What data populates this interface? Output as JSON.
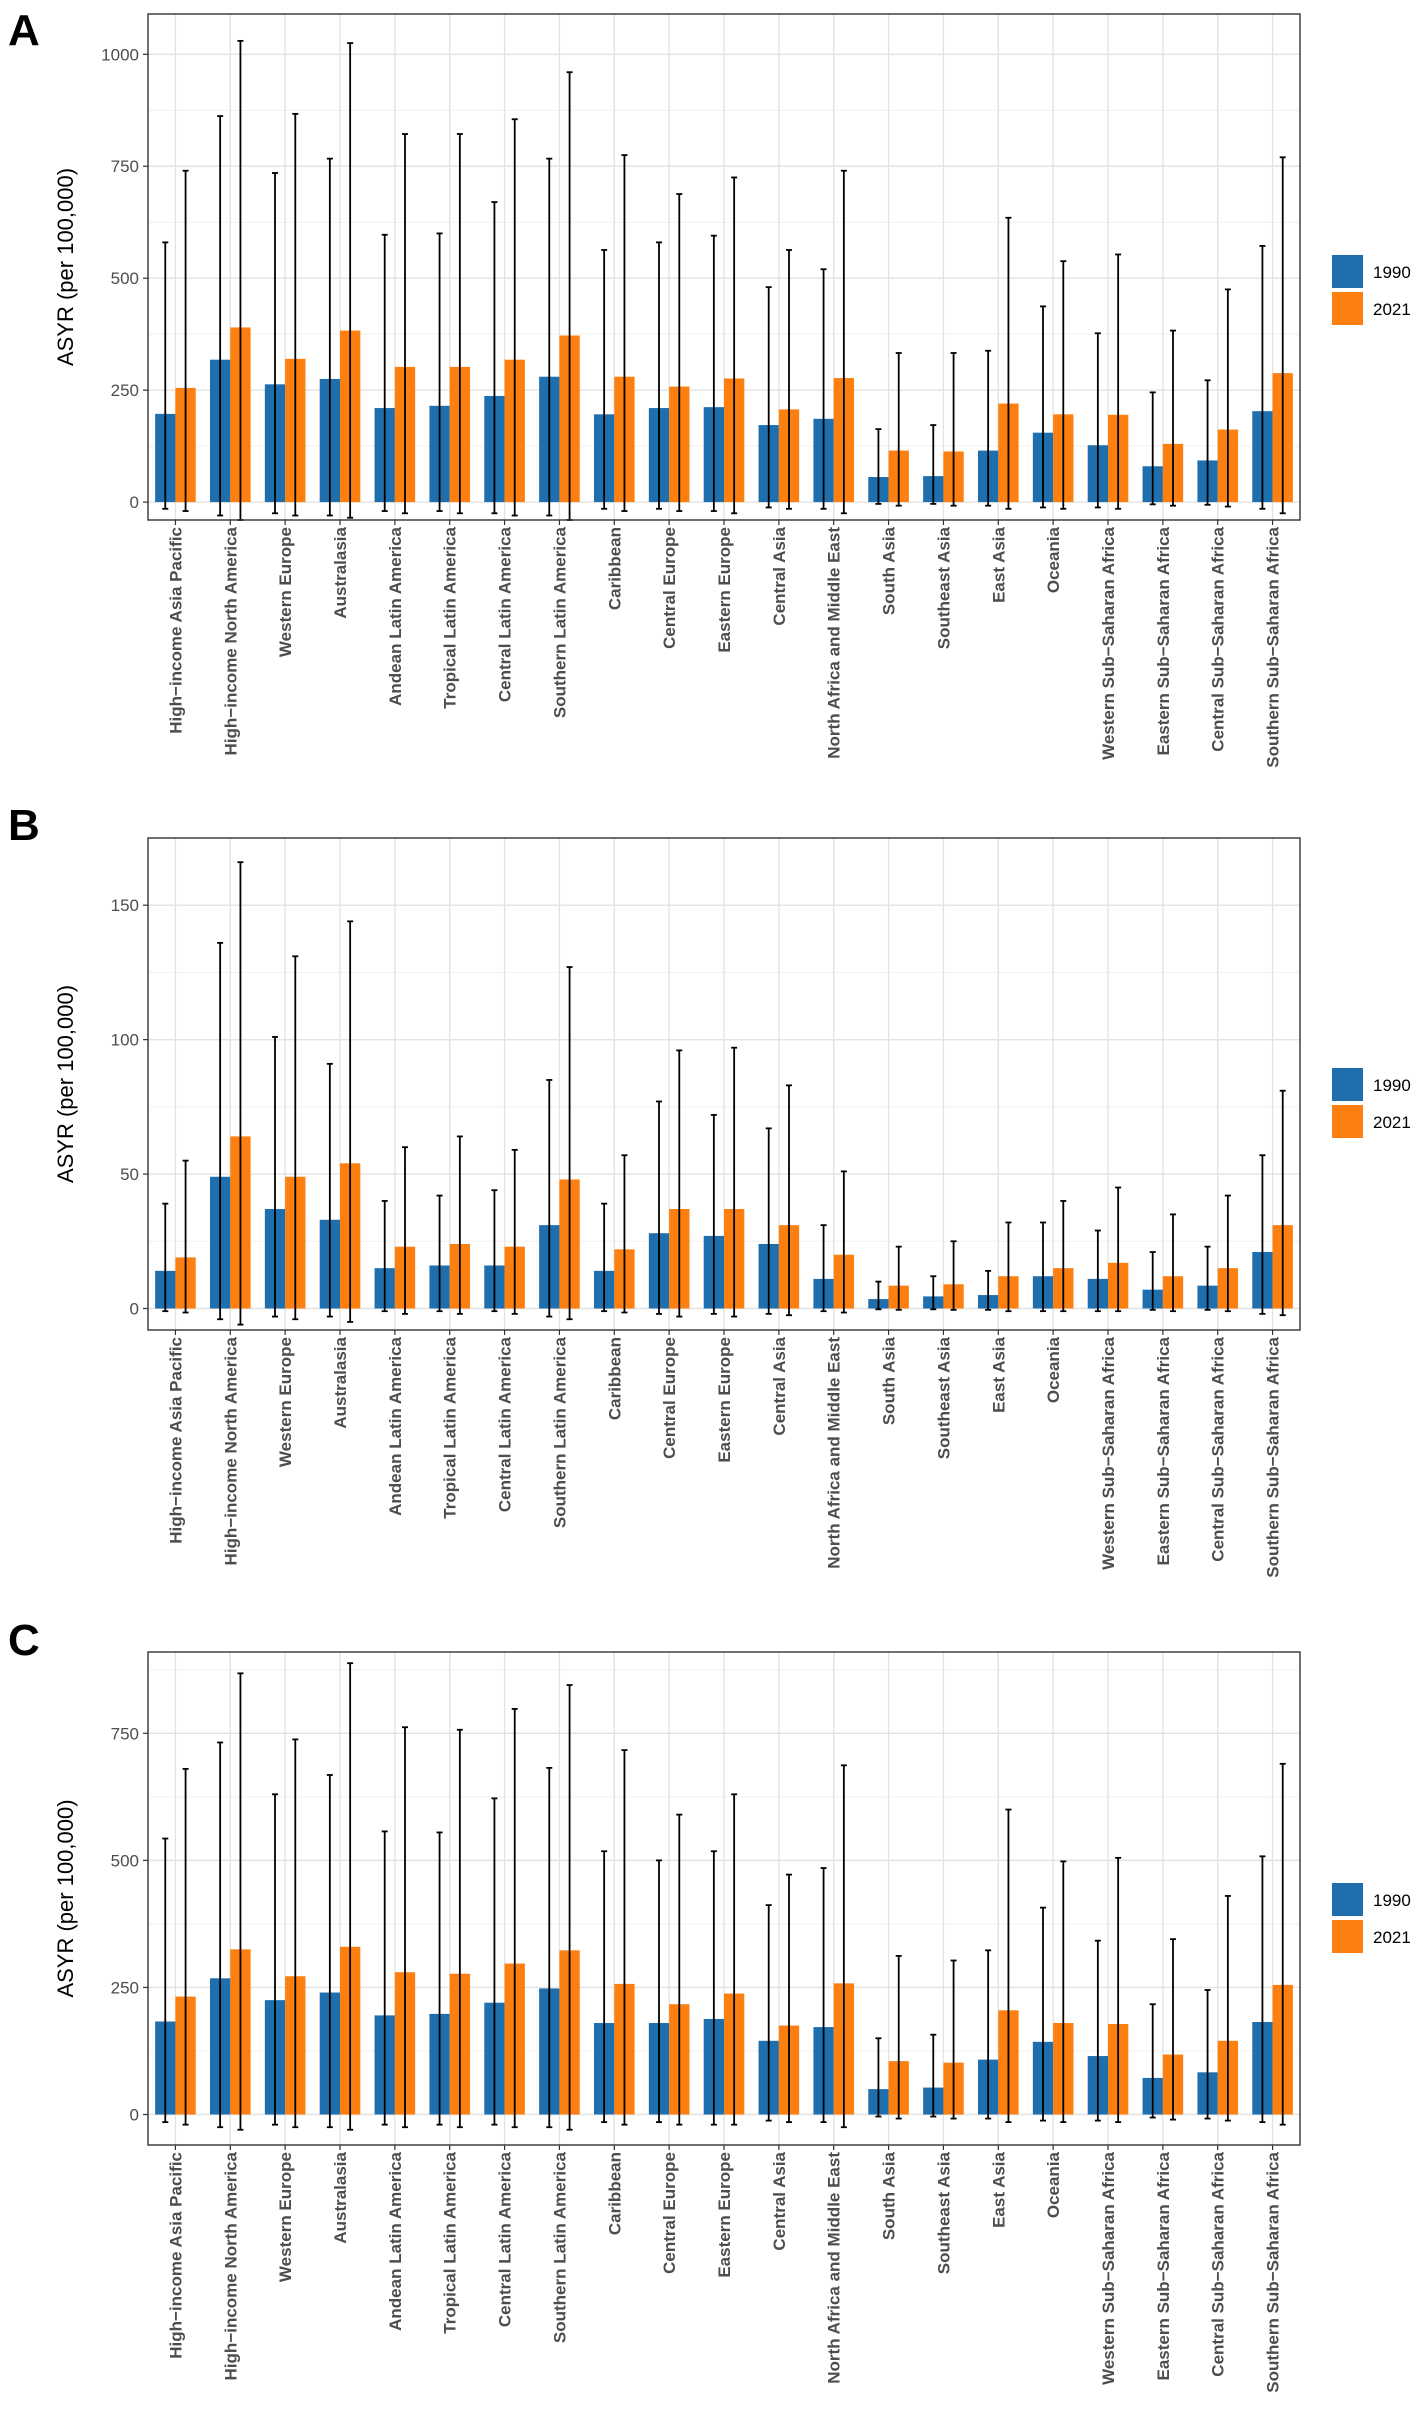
{
  "colors": {
    "series_1990": "#1f6ead",
    "series_2021": "#fc7f0f"
  },
  "chart_data": [
    {
      "panel": "A",
      "type": "bar",
      "ylabel": "ASYR (per 100,000)",
      "ylim": [
        -40,
        1090
      ],
      "yticks": [
        0,
        250,
        500,
        750,
        1000
      ],
      "grid": true,
      "legend_position": "right",
      "categories": [
        "High−income Asia Pacific",
        "High−income North America",
        "Western Europe",
        "Australasia",
        "Andean Latin America",
        "Tropical Latin America",
        "Central Latin America",
        "Southern Latin America",
        "Caribbean",
        "Central Europe",
        "Eastern Europe",
        "Central Asia",
        "North Africa and Middle East",
        "South Asia",
        "Southeast Asia",
        "East Asia",
        "Oceania",
        "Western Sub−Saharan Africa",
        "Eastern Sub−Saharan Africa",
        "Central Sub−Saharan Africa",
        "Southern Sub−Saharan Africa"
      ],
      "series": [
        {
          "name": "1990",
          "values": [
            197,
            318,
            263,
            275,
            210,
            215,
            237,
            280,
            196,
            210,
            212,
            172,
            186,
            56,
            58,
            115,
            155,
            127,
            80,
            93,
            203
          ],
          "lower": [
            -15,
            -30,
            -25,
            -30,
            -20,
            -20,
            -25,
            -30,
            -15,
            -15,
            -20,
            -12,
            -15,
            -4,
            -4,
            -8,
            -12,
            -12,
            -5,
            -6,
            -15
          ],
          "upper": [
            580,
            862,
            735,
            767,
            597,
            600,
            670,
            767,
            563,
            580,
            595,
            480,
            520,
            163,
            172,
            338,
            437,
            377,
            245,
            272,
            572
          ]
        },
        {
          "name": "2021",
          "values": [
            255,
            390,
            320,
            383,
            302,
            302,
            318,
            372,
            280,
            258,
            276,
            207,
            277,
            115,
            113,
            220,
            196,
            195,
            130,
            162,
            288
          ],
          "lower": [
            -20,
            -40,
            -30,
            -35,
            -25,
            -25,
            -30,
            -40,
            -20,
            -20,
            -25,
            -15,
            -25,
            -8,
            -8,
            -15,
            -15,
            -15,
            -8,
            -10,
            -25
          ],
          "upper": [
            740,
            1030,
            867,
            1025,
            822,
            822,
            855,
            960,
            775,
            688,
            725,
            563,
            740,
            333,
            333,
            635,
            538,
            553,
            383,
            475,
            770
          ]
        }
      ]
    },
    {
      "panel": "B",
      "type": "bar",
      "ylabel": "ASYR (per 100,000)",
      "ylim": [
        -8,
        175
      ],
      "yticks": [
        0,
        50,
        100,
        150
      ],
      "grid": true,
      "legend_position": "right",
      "categories": [
        "High−income Asia Pacific",
        "High−income North America",
        "Western Europe",
        "Australasia",
        "Andean Latin America",
        "Tropical Latin America",
        "Central Latin America",
        "Southern Latin America",
        "Caribbean",
        "Central Europe",
        "Eastern Europe",
        "Central Asia",
        "North Africa and Middle East",
        "South Asia",
        "Southeast Asia",
        "East Asia",
        "Oceania",
        "Western Sub−Saharan Africa",
        "Eastern Sub−Saharan Africa",
        "Central Sub−Saharan Africa",
        "Southern Sub−Saharan Africa"
      ],
      "series": [
        {
          "name": "1990",
          "values": [
            14,
            49,
            37,
            33,
            15,
            16,
            16,
            31,
            14,
            28,
            27,
            24,
            11,
            3.5,
            4.5,
            5,
            12,
            11,
            7,
            8.5,
            21
          ],
          "lower": [
            -1,
            -4,
            -3,
            -3,
            -1,
            -1,
            -1,
            -3,
            -1,
            -2,
            -2,
            -2,
            -1,
            -0.3,
            -0.3,
            -0.5,
            -1,
            -1,
            -0.5,
            -0.5,
            -2
          ],
          "upper": [
            39,
            136,
            101,
            91,
            40,
            42,
            44,
            85,
            39,
            77,
            72,
            67,
            31,
            10,
            12,
            14,
            32,
            29,
            21,
            23,
            57
          ]
        },
        {
          "name": "2021",
          "values": [
            19,
            64,
            49,
            54,
            23,
            24,
            23,
            48,
            22,
            37,
            37,
            31,
            20,
            8.5,
            9,
            12,
            15,
            17,
            12,
            15,
            31
          ],
          "lower": [
            -1.5,
            -6,
            -4,
            -5,
            -2,
            -2,
            -2,
            -4,
            -1.5,
            -3,
            -3,
            -2.5,
            -1.5,
            -0.5,
            -0.5,
            -1,
            -1,
            -1,
            -1,
            -1,
            -2.5
          ],
          "upper": [
            55,
            166,
            131,
            144,
            60,
            64,
            59,
            127,
            57,
            96,
            97,
            83,
            51,
            23,
            25,
            32,
            40,
            45,
            35,
            42,
            81
          ]
        }
      ]
    },
    {
      "panel": "C",
      "type": "bar",
      "ylabel": "ASYR (per 100,000)",
      "ylim": [
        -60,
        910
      ],
      "yticks": [
        0,
        250,
        500,
        750
      ],
      "grid": true,
      "legend_position": "right",
      "categories": [
        "High−income Asia Pacific",
        "High−income North America",
        "Western Europe",
        "Australasia",
        "Andean Latin America",
        "Tropical Latin America",
        "Central Latin America",
        "Southern Latin America",
        "Caribbean",
        "Central Europe",
        "Eastern Europe",
        "Central Asia",
        "North Africa and Middle East",
        "South Asia",
        "Southeast Asia",
        "East Asia",
        "Oceania",
        "Western Sub−Saharan Africa",
        "Eastern Sub−Saharan Africa",
        "Central Sub−Saharan Africa",
        "Southern Sub−Saharan Africa"
      ],
      "series": [
        {
          "name": "1990",
          "values": [
            183,
            268,
            225,
            240,
            195,
            198,
            220,
            248,
            180,
            180,
            188,
            145,
            172,
            50,
            53,
            108,
            143,
            115,
            72,
            83,
            182
          ],
          "lower": [
            -15,
            -25,
            -20,
            -25,
            -20,
            -20,
            -20,
            -25,
            -15,
            -15,
            -20,
            -12,
            -15,
            -4,
            -4,
            -8,
            -12,
            -12,
            -6,
            -8,
            -15
          ],
          "upper": [
            543,
            732,
            630,
            668,
            557,
            555,
            622,
            682,
            518,
            500,
            518,
            412,
            485,
            150,
            157,
            323,
            407,
            342,
            217,
            245,
            508
          ]
        },
        {
          "name": "2021",
          "values": [
            232,
            325,
            272,
            330,
            280,
            277,
            297,
            323,
            257,
            217,
            238,
            175,
            258,
            105,
            102,
            205,
            180,
            178,
            118,
            145,
            255
          ],
          "lower": [
            -20,
            -30,
            -25,
            -30,
            -25,
            -25,
            -25,
            -30,
            -20,
            -20,
            -20,
            -15,
            -25,
            -8,
            -8,
            -15,
            -15,
            -15,
            -10,
            -12,
            -20
          ],
          "upper": [
            680,
            868,
            738,
            888,
            762,
            757,
            798,
            845,
            717,
            590,
            630,
            472,
            687,
            312,
            303,
            600,
            498,
            505,
            345,
            430,
            690
          ]
        }
      ]
    }
  ]
}
